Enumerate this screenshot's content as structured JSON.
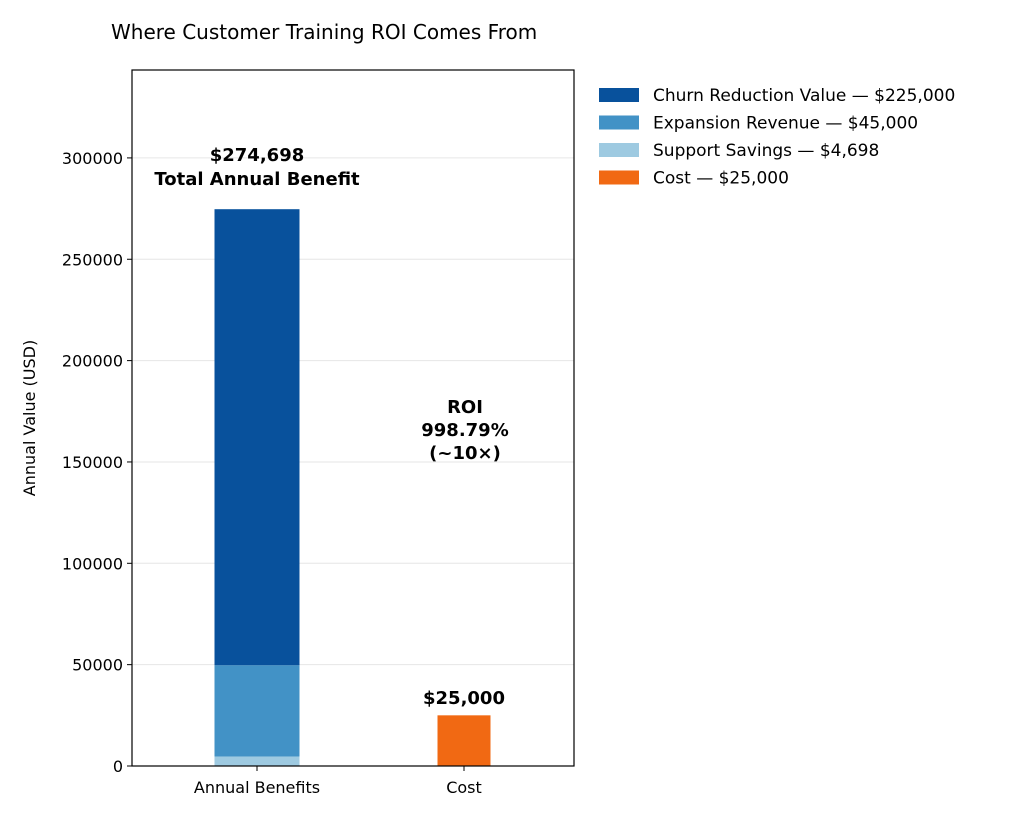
{
  "chart_data": {
    "type": "bar",
    "stacked": true,
    "title": "Where Customer Training ROI Comes From",
    "xlabel": "",
    "ylabel": "Annual Value (USD)",
    "categories": [
      "Annual Benefits",
      "Cost"
    ],
    "ylim": [
      0,
      343372
    ],
    "yticks": [
      0,
      50000,
      100000,
      150000,
      200000,
      250000,
      300000
    ],
    "grid": true,
    "legend_position": "outside-top-right",
    "series": [
      {
        "name": "Support Savings — $4,698",
        "category": "Annual Benefits",
        "value": 4698,
        "color": "#9ecae1"
      },
      {
        "name": "Expansion Revenue — $45,000",
        "category": "Annual Benefits",
        "value": 45000,
        "color": "#4292c6"
      },
      {
        "name": "Churn Reduction Value — $225,000",
        "category": "Annual Benefits",
        "value": 225000,
        "color": "#08519c"
      },
      {
        "name": "Cost — $25,000",
        "category": "Cost",
        "value": 25000,
        "color": "#f16913"
      }
    ],
    "legend_order": [
      2,
      1,
      0,
      3
    ],
    "annotations": {
      "benefit_total": "$274,698",
      "benefit_label": "Total Annual Benefit",
      "cost_label": "$25,000",
      "roi_lines": [
        "ROI",
        "998.79%",
        "(~10×)"
      ]
    }
  }
}
